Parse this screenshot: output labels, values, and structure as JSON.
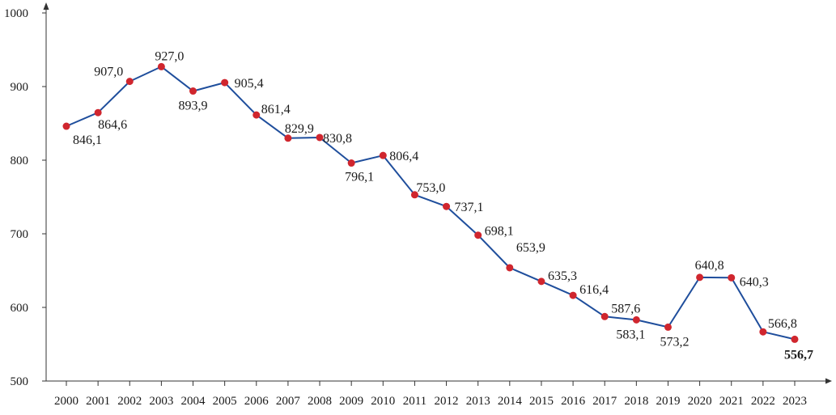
{
  "chart_data": {
    "type": "line",
    "title": "",
    "xlabel": "",
    "ylabel": "",
    "x": [
      "2000",
      "2001",
      "2002",
      "2003",
      "2004",
      "2005",
      "2006",
      "2007",
      "2008",
      "2009",
      "2010",
      "2011",
      "2012",
      "2013",
      "2014",
      "2015",
      "2016",
      "2017",
      "2018",
      "2019",
      "2020",
      "2021",
      "2022",
      "2023"
    ],
    "values": [
      846.1,
      864.6,
      907.0,
      927.0,
      893.9,
      905.4,
      861.4,
      829.9,
      830.8,
      796.1,
      806.4,
      753.0,
      737.1,
      698.1,
      653.9,
      635.3,
      616.4,
      587.6,
      583.1,
      573.2,
      640.8,
      640.3,
      566.8,
      556.7
    ],
    "value_labels": [
      "846,1",
      "864,6",
      "907,0",
      "927,0",
      "893,9",
      "905,4",
      "861,4",
      "829,9",
      "830,8",
      "796,1",
      "806,4",
      "753,0",
      "737,1",
      "698,1",
      "653,9",
      "635,3",
      "616,4",
      "587,6",
      "583,1",
      "573,2",
      "640,8",
      "640,3",
      "566,8",
      "556,7"
    ],
    "ylim": [
      500,
      1000
    ],
    "yticks": [
      500,
      600,
      700,
      800,
      900,
      1000
    ],
    "ytick_labels": [
      "500",
      "600",
      "700",
      "800",
      "900",
      "1000"
    ],
    "grid": false,
    "legend": "none",
    "colors": {
      "line": "#1f4e9c",
      "marker": "#d0262e",
      "axis": "#333333",
      "text": "#1a1a1a"
    },
    "bold_label_index": 23
  }
}
